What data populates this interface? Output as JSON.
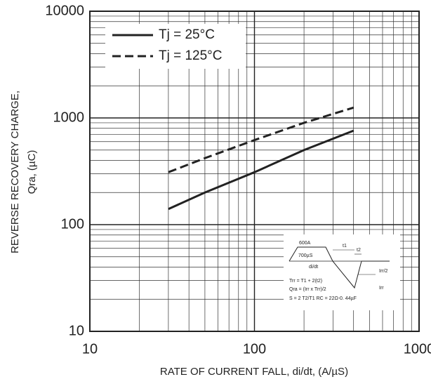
{
  "chart_data": {
    "type": "line",
    "y_label": [
      "REVERSE RECOVERY CHARGE,",
      "Qra, (µC)"
    ],
    "x_label": "RATE OF CURRENT FALL, di/dt, (A/µS)",
    "x": [
      30,
      50,
      100,
      200,
      400
    ],
    "series": [
      {
        "name": "Tj = 25°C",
        "color": "#222222",
        "dash": false,
        "values": [
          140,
          200,
          310,
          500,
          760
        ]
      },
      {
        "name": "Tj = 125°C",
        "color": "#222222",
        "dash": true,
        "values": [
          310,
          420,
          620,
          900,
          1250
        ]
      }
    ],
    "xlim": [
      10,
      1000
    ],
    "xticks": [
      10,
      100,
      1000
    ],
    "ylim": [
      10,
      10000
    ],
    "yticks": [
      10,
      100,
      1000,
      10000
    ],
    "log_x": true,
    "log_y": true,
    "grid": true,
    "minor_grid": true,
    "legend": "upper left",
    "inset": [
      "600A",
      "700µS",
      "t1",
      "t2",
      "di/dt",
      "Irr/2",
      "Irr",
      "Trr = T1 + 2(t2)",
      "Qra = (Irr x Trr)/2",
      "S = 2 T2/T1  RC = 22Ω-0. 44µF"
    ]
  }
}
